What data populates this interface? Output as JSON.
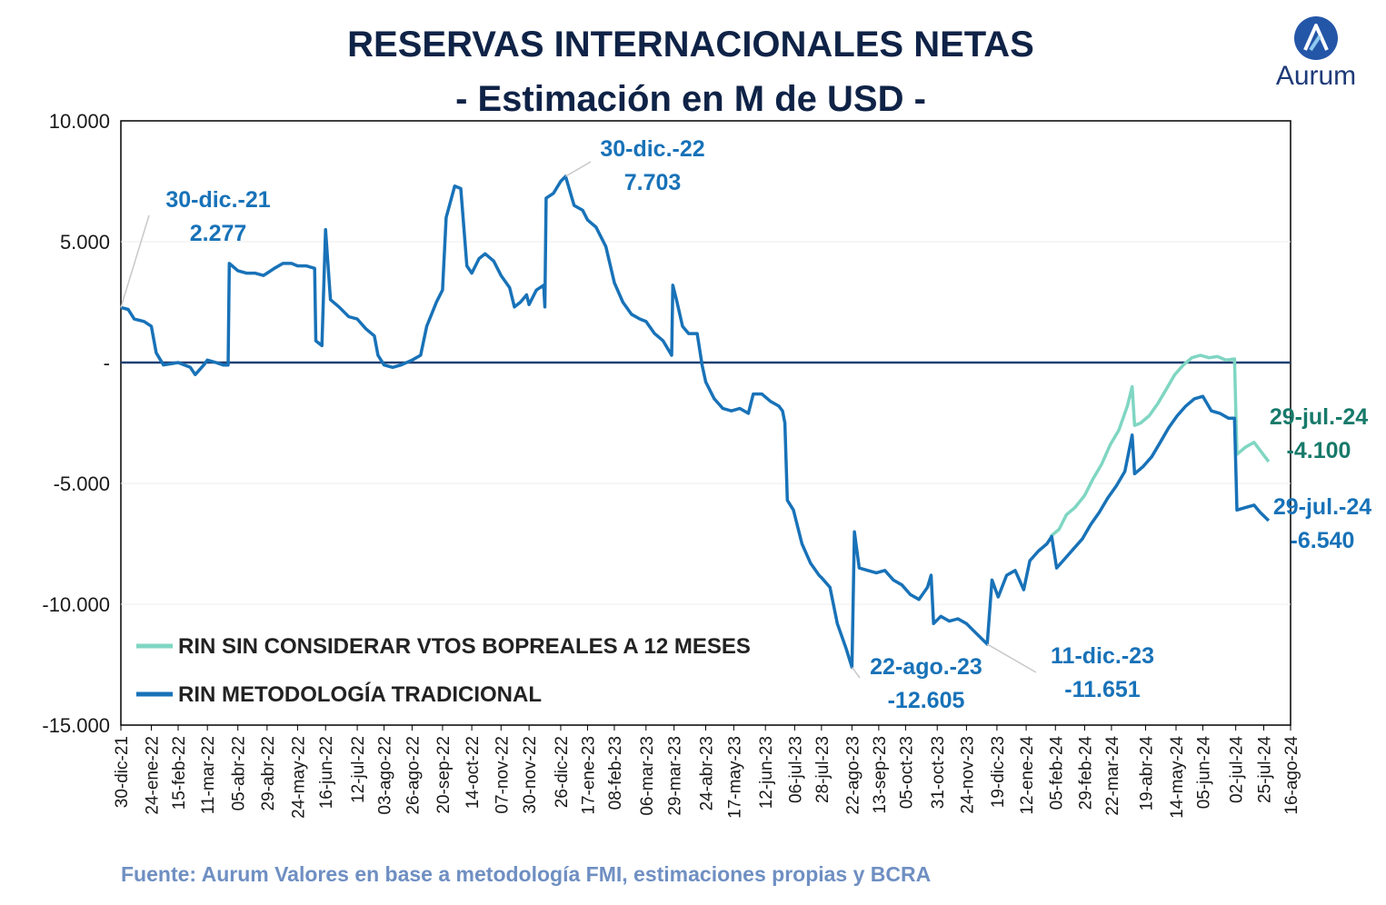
{
  "title_line1": "RESERVAS INTERNACIONALES NETAS",
  "title_line2": "- Estimación en M de USD -",
  "source": "Fuente: Aurum Valores en base a metodología FMI, estimaciones propias y BCRA",
  "logo": {
    "text": "Aurum",
    "icon": "aurum-logo-icon"
  },
  "colors": {
    "traditional": "#1872b8",
    "sin_vtos": "#7fd6c2",
    "zero_line": "#1f3f72",
    "annotation_blue": "#1872b8",
    "annotation_teal": "#177a6a",
    "title": "#0f2347"
  },
  "chart_data": {
    "type": "line",
    "title": "RESERVAS INTERNACIONALES NETAS - Estimación en M de USD -",
    "xlabel": "",
    "ylabel": "",
    "ylim": [
      -15000,
      10000
    ],
    "xlim": [
      "2021-12-30",
      "2024-08-16"
    ],
    "yticks": [
      {
        "value": 10000,
        "label": "10.000"
      },
      {
        "value": 5000,
        "label": "5.000"
      },
      {
        "value": 0,
        "label": "-"
      },
      {
        "value": -5000,
        "label": "-5.000"
      },
      {
        "value": -10000,
        "label": "-10.000"
      },
      {
        "value": -15000,
        "label": "-15.000"
      }
    ],
    "xticks": [
      "30-dic-21",
      "24-ene-22",
      "15-feb-22",
      "11-mar-22",
      "05-abr-22",
      "29-abr-22",
      "24-may-22",
      "16-jun-22",
      "12-jul-22",
      "03-ago-22",
      "26-ago-22",
      "20-sep-22",
      "14-oct-22",
      "07-nov-22",
      "30-nov-22",
      "26-dic-22",
      "17-ene-23",
      "08-feb-23",
      "06-mar-23",
      "29-mar-23",
      "24-abr-23",
      "17-may-23",
      "12-jun-23",
      "06-jul-23",
      "28-jul-23",
      "22-ago-23",
      "13-sep-23",
      "05-oct-23",
      "31-oct-23",
      "24-nov-23",
      "19-dic-23",
      "12-ene-24",
      "05-feb-24",
      "29-feb-24",
      "22-mar-24",
      "19-abr-24",
      "14-may-24",
      "05-jun-24",
      "02-jul-24",
      "25-jul-24",
      "16-ago-24"
    ],
    "grid": true,
    "legend_position": "bottom-left",
    "series": [
      {
        "name": "RIN SIN CONSIDERAR VTOS BOPREALES A 12 MESES",
        "color": "#7fd6c2",
        "points": [
          [
            "2024-02-01",
            -7200
          ],
          [
            "2024-02-08",
            -6900
          ],
          [
            "2024-02-14",
            -6300
          ],
          [
            "2024-02-21",
            -6000
          ],
          [
            "2024-02-29",
            -5500
          ],
          [
            "2024-03-07",
            -4800
          ],
          [
            "2024-03-14",
            -4200
          ],
          [
            "2024-03-21",
            -3400
          ],
          [
            "2024-03-28",
            -2800
          ],
          [
            "2024-04-04",
            -1800
          ],
          [
            "2024-04-08",
            -1000
          ],
          [
            "2024-04-10",
            -2600
          ],
          [
            "2024-04-15",
            -2500
          ],
          [
            "2024-04-22",
            -2200
          ],
          [
            "2024-04-29",
            -1700
          ],
          [
            "2024-05-06",
            -1100
          ],
          [
            "2024-05-13",
            -500
          ],
          [
            "2024-05-20",
            -100
          ],
          [
            "2024-05-27",
            200
          ],
          [
            "2024-06-03",
            300
          ],
          [
            "2024-06-10",
            200
          ],
          [
            "2024-06-17",
            250
          ],
          [
            "2024-06-24",
            100
          ],
          [
            "2024-07-01",
            150
          ],
          [
            "2024-07-03",
            -3800
          ],
          [
            "2024-07-10",
            -3500
          ],
          [
            "2024-07-17",
            -3300
          ],
          [
            "2024-07-23",
            -3700
          ],
          [
            "2024-07-29",
            -4100
          ]
        ]
      },
      {
        "name": "RIN METODOLOGÍA TRADICIONAL",
        "color": "#1872b8",
        "points": [
          [
            "2021-12-30",
            2277
          ],
          [
            "2022-01-05",
            2200
          ],
          [
            "2022-01-10",
            1800
          ],
          [
            "2022-01-18",
            1700
          ],
          [
            "2022-01-24",
            1500
          ],
          [
            "2022-01-28",
            400
          ],
          [
            "2022-02-03",
            -100
          ],
          [
            "2022-02-15",
            0
          ],
          [
            "2022-02-25",
            -200
          ],
          [
            "2022-03-01",
            -500
          ],
          [
            "2022-03-08",
            -100
          ],
          [
            "2022-03-11",
            100
          ],
          [
            "2022-03-18",
            0
          ],
          [
            "2022-03-24",
            -100
          ],
          [
            "2022-03-28",
            -100
          ],
          [
            "2022-03-29",
            4100
          ],
          [
            "2022-04-05",
            3800
          ],
          [
            "2022-04-12",
            3700
          ],
          [
            "2022-04-19",
            3700
          ],
          [
            "2022-04-26",
            3600
          ],
          [
            "2022-04-29",
            3700
          ],
          [
            "2022-05-05",
            3900
          ],
          [
            "2022-05-12",
            4100
          ],
          [
            "2022-05-19",
            4100
          ],
          [
            "2022-05-24",
            4000
          ],
          [
            "2022-05-31",
            4000
          ],
          [
            "2022-06-07",
            3900
          ],
          [
            "2022-06-08",
            900
          ],
          [
            "2022-06-13",
            700
          ],
          [
            "2022-06-16",
            5500
          ],
          [
            "2022-06-20",
            2600
          ],
          [
            "2022-06-27",
            2300
          ],
          [
            "2022-07-05",
            1900
          ],
          [
            "2022-07-12",
            1800
          ],
          [
            "2022-07-19",
            1400
          ],
          [
            "2022-07-26",
            1100
          ],
          [
            "2022-07-29",
            300
          ],
          [
            "2022-08-03",
            -100
          ],
          [
            "2022-08-10",
            -200
          ],
          [
            "2022-08-17",
            -100
          ],
          [
            "2022-08-26",
            100
          ],
          [
            "2022-09-02",
            300
          ],
          [
            "2022-09-07",
            1500
          ],
          [
            "2022-09-15",
            2500
          ],
          [
            "2022-09-20",
            3000
          ],
          [
            "2022-09-23",
            6000
          ],
          [
            "2022-09-30",
            7300
          ],
          [
            "2022-10-05",
            7200
          ],
          [
            "2022-10-10",
            4000
          ],
          [
            "2022-10-14",
            3700
          ],
          [
            "2022-10-20",
            4300
          ],
          [
            "2022-10-25",
            4500
          ],
          [
            "2022-11-01",
            4200
          ],
          [
            "2022-11-07",
            3600
          ],
          [
            "2022-11-14",
            3100
          ],
          [
            "2022-11-18",
            2300
          ],
          [
            "2022-11-23",
            2500
          ],
          [
            "2022-11-28",
            2800
          ],
          [
            "2022-11-30",
            2400
          ],
          [
            "2022-12-06",
            3000
          ],
          [
            "2022-12-12",
            3200
          ],
          [
            "2022-12-13",
            2300
          ],
          [
            "2022-12-14",
            6800
          ],
          [
            "2022-12-20",
            7000
          ],
          [
            "2022-12-26",
            7500
          ],
          [
            "2022-12-30",
            7703
          ],
          [
            "2023-01-06",
            6500
          ],
          [
            "2023-01-13",
            6300
          ],
          [
            "2023-01-17",
            5900
          ],
          [
            "2023-01-24",
            5600
          ],
          [
            "2023-02-01",
            4800
          ],
          [
            "2023-02-08",
            3300
          ],
          [
            "2023-02-15",
            2500
          ],
          [
            "2023-02-22",
            2000
          ],
          [
            "2023-03-01",
            1800
          ],
          [
            "2023-03-06",
            1700
          ],
          [
            "2023-03-13",
            1200
          ],
          [
            "2023-03-20",
            900
          ],
          [
            "2023-03-27",
            300
          ],
          [
            "2023-03-28",
            3200
          ],
          [
            "2023-03-31",
            2600
          ],
          [
            "2023-04-05",
            1500
          ],
          [
            "2023-04-10",
            1200
          ],
          [
            "2023-04-17",
            1200
          ],
          [
            "2023-04-21",
            -100
          ],
          [
            "2023-04-24",
            -800
          ],
          [
            "2023-05-01",
            -1500
          ],
          [
            "2023-05-08",
            -1900
          ],
          [
            "2023-05-15",
            -2000
          ],
          [
            "2023-05-22",
            -1900
          ],
          [
            "2023-05-29",
            -2100
          ],
          [
            "2023-06-02",
            -1300
          ],
          [
            "2023-06-09",
            -1300
          ],
          [
            "2023-06-16",
            -1600
          ],
          [
            "2023-06-23",
            -1800
          ],
          [
            "2023-06-26",
            -2000
          ],
          [
            "2023-06-28",
            -2500
          ],
          [
            "2023-06-30",
            -5700
          ],
          [
            "2023-07-05",
            -6100
          ],
          [
            "2023-07-12",
            -7500
          ],
          [
            "2023-07-19",
            -8300
          ],
          [
            "2023-07-26",
            -8800
          ],
          [
            "2023-07-28",
            -8900
          ],
          [
            "2023-08-04",
            -9300
          ],
          [
            "2023-08-10",
            -10800
          ],
          [
            "2023-08-17",
            -11800
          ],
          [
            "2023-08-22",
            -12605
          ],
          [
            "2023-08-24",
            -7000
          ],
          [
            "2023-08-28",
            -8500
          ],
          [
            "2023-09-04",
            -8600
          ],
          [
            "2023-09-11",
            -8700
          ],
          [
            "2023-09-18",
            -8600
          ],
          [
            "2023-09-25",
            -9000
          ],
          [
            "2023-10-02",
            -9200
          ],
          [
            "2023-10-09",
            -9600
          ],
          [
            "2023-10-16",
            -9800
          ],
          [
            "2023-10-23",
            -9300
          ],
          [
            "2023-10-26",
            -8800
          ],
          [
            "2023-10-28",
            -10800
          ],
          [
            "2023-11-03",
            -10500
          ],
          [
            "2023-11-10",
            -10700
          ],
          [
            "2023-11-17",
            -10600
          ],
          [
            "2023-11-24",
            -10800
          ],
          [
            "2023-11-30",
            -11100
          ],
          [
            "2023-12-04",
            -11300
          ],
          [
            "2023-12-11",
            -11651
          ],
          [
            "2023-12-15",
            -9000
          ],
          [
            "2023-12-20",
            -9700
          ],
          [
            "2023-12-27",
            -8800
          ],
          [
            "2024-01-03",
            -8600
          ],
          [
            "2024-01-10",
            -9400
          ],
          [
            "2024-01-15",
            -8200
          ],
          [
            "2024-01-22",
            -7800
          ],
          [
            "2024-01-29",
            -7500
          ],
          [
            "2024-02-02",
            -7200
          ],
          [
            "2024-02-06",
            -8500
          ],
          [
            "2024-02-13",
            -8100
          ],
          [
            "2024-02-20",
            -7700
          ],
          [
            "2024-02-27",
            -7300
          ],
          [
            "2024-03-05",
            -6700
          ],
          [
            "2024-03-12",
            -6200
          ],
          [
            "2024-03-19",
            -5600
          ],
          [
            "2024-03-26",
            -5100
          ],
          [
            "2024-04-02",
            -4500
          ],
          [
            "2024-04-08",
            -3000
          ],
          [
            "2024-04-10",
            -4600
          ],
          [
            "2024-04-17",
            -4300
          ],
          [
            "2024-04-24",
            -3900
          ],
          [
            "2024-05-01",
            -3300
          ],
          [
            "2024-05-08",
            -2700
          ],
          [
            "2024-05-15",
            -2200
          ],
          [
            "2024-05-22",
            -1800
          ],
          [
            "2024-05-29",
            -1500
          ],
          [
            "2024-06-05",
            -1400
          ],
          [
            "2024-06-12",
            -2000
          ],
          [
            "2024-06-19",
            -2100
          ],
          [
            "2024-06-26",
            -2300
          ],
          [
            "2024-07-01",
            -2300
          ],
          [
            "2024-07-03",
            -6100
          ],
          [
            "2024-07-10",
            -6000
          ],
          [
            "2024-07-17",
            -5900
          ],
          [
            "2024-07-22",
            -6200
          ],
          [
            "2024-07-29",
            -6540
          ]
        ]
      }
    ],
    "annotations": [
      {
        "label": "30-dic.-21",
        "value": "2.277",
        "color": "#1872b8",
        "anchor": [
          "2021-12-30",
          2277
        ]
      },
      {
        "label": "30-dic.-22",
        "value": "7.703",
        "color": "#1872b8",
        "anchor": [
          "2022-12-30",
          7703
        ]
      },
      {
        "label": "22-ago.-23",
        "value": "-12.605",
        "color": "#1872b8",
        "anchor": [
          "2023-08-22",
          -12605
        ]
      },
      {
        "label": "11-dic.-23",
        "value": "-11.651",
        "color": "#1872b8",
        "anchor": [
          "2023-12-11",
          -11651
        ]
      },
      {
        "label": "29-jul.-24",
        "value": "-4.100",
        "color": "#177a6a",
        "anchor": [
          "2024-07-29",
          -4100
        ]
      },
      {
        "label": "29-jul.-24",
        "value": "-6.540",
        "color": "#1872b8",
        "anchor": [
          "2024-07-29",
          -6540
        ]
      }
    ]
  }
}
